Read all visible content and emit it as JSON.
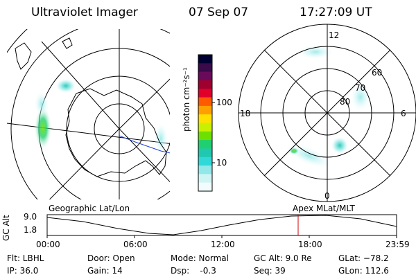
{
  "header": {
    "instrument": "Ultraviolet Imager",
    "date": "07 Sep 07",
    "time": "17:27:09 UT"
  },
  "colorbar": {
    "unit_label": "photon cm⁻²s⁻¹",
    "ticks": [
      "100",
      "10"
    ],
    "colors": [
      "#000033",
      "#3a0a4a",
      "#6a0a5a",
      "#a00030",
      "#e0002a",
      "#ff5a00",
      "#ffa000",
      "#ffe000",
      "#c8f000",
      "#6ee000",
      "#20d070",
      "#20c8b0",
      "#30d8d8",
      "#90e8e8",
      "#cff4f4",
      "#f2fcfc"
    ]
  },
  "polar_plot": {
    "mlt_labels": {
      "top": "12",
      "bottom": "0",
      "left": "18",
      "right": "6"
    },
    "mlat_labels": [
      "60",
      "70",
      "80"
    ]
  },
  "timeline": {
    "left_label": "Geographic Lat/Lon",
    "right_label": "Apex MLat/MLT",
    "y_axis_label": "GC Alt",
    "y_ticks": [
      "9.0",
      "1.8"
    ],
    "x_ticks": [
      "00:00",
      "06:00",
      "12:00",
      "18:00",
      "23:59"
    ],
    "marker_color": "#cc0000"
  },
  "status": {
    "filter": "Flt: LBHL",
    "ip": "IP: 36.0",
    "door": "Door: Open",
    "gain": "Gain: 14",
    "mode": "Mode: Normal",
    "dsp": "Dsp:    -0.3",
    "gc_alt": "GC Alt: 9.0 Re",
    "seq": "Seq: 39",
    "glat": "GLat: −78.2",
    "glon": "GLon: 112.6"
  }
}
